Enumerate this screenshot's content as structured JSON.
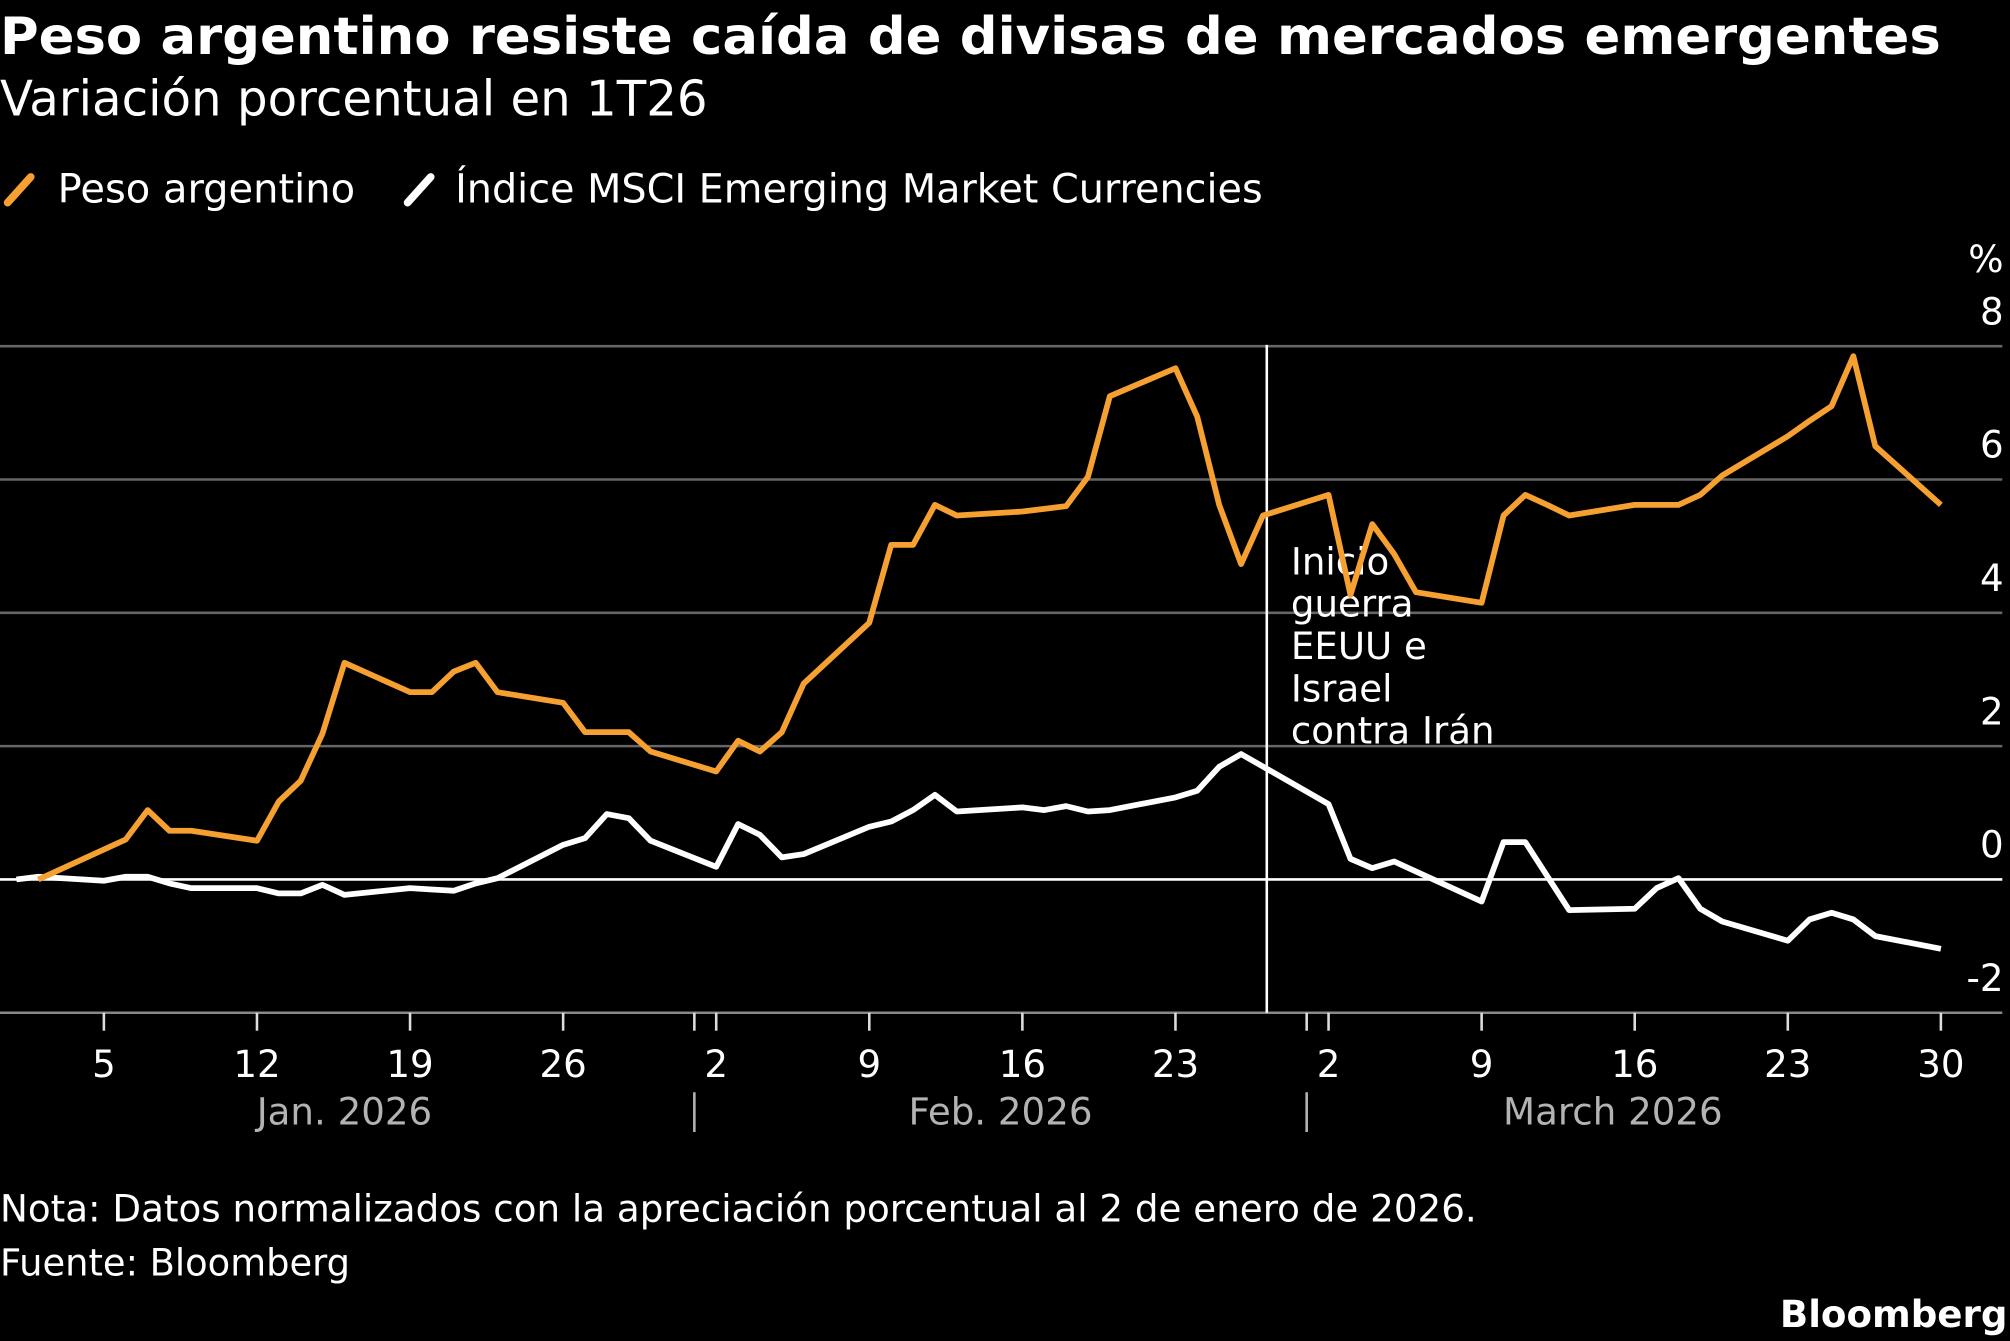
{
  "chart_data": {
    "type": "line",
    "title": "Peso argentino resiste caída de divisas de mercados emergentes",
    "subtitle": "Variación porcentual en 1T26",
    "ylabel": "%",
    "ylim": [
      -2,
      8
    ],
    "yticks": [
      "8",
      "6",
      "4",
      "2",
      "0",
      "-2"
    ],
    "yticks_values": [
      8,
      6,
      4,
      2,
      0,
      -2
    ],
    "xlim": [
      "2026-01-01",
      "2026-03-31"
    ],
    "xticks": [
      {
        "date": "2026-01-05",
        "label": "5"
      },
      {
        "date": "2026-01-12",
        "label": "12"
      },
      {
        "date": "2026-01-19",
        "label": "19"
      },
      {
        "date": "2026-01-26",
        "label": "26"
      },
      {
        "date": "2026-02-02",
        "label": "2"
      },
      {
        "date": "2026-02-09",
        "label": "9"
      },
      {
        "date": "2026-02-16",
        "label": "16"
      },
      {
        "date": "2026-02-23",
        "label": "23"
      },
      {
        "date": "2026-03-02",
        "label": "2"
      },
      {
        "date": "2026-03-09",
        "label": "9"
      },
      {
        "date": "2026-03-16",
        "label": "16"
      },
      {
        "date": "2026-03-23",
        "label": "23"
      },
      {
        "date": "2026-03-30",
        "label": "30"
      }
    ],
    "months": [
      {
        "label": "Jan. 2026",
        "center": "2026-01-16",
        "start": "2026-01-01"
      },
      {
        "label": "Feb. 2026",
        "center": "2026-02-15",
        "start": "2026-02-01"
      },
      {
        "label": "March 2026",
        "center": "2026-03-15",
        "start": "2026-03-01"
      }
    ],
    "grid": true,
    "legend_placement": "top-left",
    "series": [
      {
        "name": "Peso argentino",
        "color": "#f5a030",
        "points": [
          [
            "2026-01-02",
            0
          ],
          [
            "2026-01-06",
            0.6
          ],
          [
            "2026-01-07",
            1.04
          ],
          [
            "2026-01-08",
            0.73
          ],
          [
            "2026-01-09",
            0.73
          ],
          [
            "2026-01-12",
            0.58
          ],
          [
            "2026-01-13",
            1.17
          ],
          [
            "2026-01-14",
            1.48
          ],
          [
            "2026-01-15",
            2.19
          ],
          [
            "2026-01-16",
            3.25
          ],
          [
            "2026-01-19",
            2.81
          ],
          [
            "2026-01-20",
            2.81
          ],
          [
            "2026-01-21",
            3.12
          ],
          [
            "2026-01-22",
            3.25
          ],
          [
            "2026-01-23",
            2.81
          ],
          [
            "2026-01-26",
            2.65
          ],
          [
            "2026-01-27",
            2.21
          ],
          [
            "2026-01-28",
            2.21
          ],
          [
            "2026-01-29",
            2.21
          ],
          [
            "2026-01-30",
            1.92
          ],
          [
            "2026-02-02",
            1.62
          ],
          [
            "2026-02-03",
            2.08
          ],
          [
            "2026-02-04",
            1.92
          ],
          [
            "2026-02-05",
            2.21
          ],
          [
            "2026-02-06",
            2.94
          ],
          [
            "2026-02-09",
            3.85
          ],
          [
            "2026-02-10",
            5.02
          ],
          [
            "2026-02-11",
            5.02
          ],
          [
            "2026-02-12",
            5.62
          ],
          [
            "2026-02-13",
            5.46
          ],
          [
            "2026-02-16",
            5.52
          ],
          [
            "2026-02-17",
            5.56
          ],
          [
            "2026-02-18",
            5.6
          ],
          [
            "2026-02-19",
            6.04
          ],
          [
            "2026-02-20",
            7.25
          ],
          [
            "2026-02-23",
            7.67
          ],
          [
            "2026-02-24",
            6.94
          ],
          [
            "2026-02-25",
            5.62
          ],
          [
            "2026-02-26",
            4.73
          ],
          [
            "2026-02-27",
            5.46
          ],
          [
            "2026-03-02",
            5.77
          ],
          [
            "2026-03-03",
            4.27
          ],
          [
            "2026-03-04",
            5.33
          ],
          [
            "2026-03-05",
            4.88
          ],
          [
            "2026-03-06",
            4.31
          ],
          [
            "2026-03-09",
            4.15
          ],
          [
            "2026-03-10",
            5.46
          ],
          [
            "2026-03-11",
            5.77
          ],
          [
            "2026-03-12",
            5.62
          ],
          [
            "2026-03-13",
            5.46
          ],
          [
            "2026-03-16",
            5.62
          ],
          [
            "2026-03-17",
            5.62
          ],
          [
            "2026-03-18",
            5.62
          ],
          [
            "2026-03-19",
            5.77
          ],
          [
            "2026-03-20",
            6.06
          ],
          [
            "2026-03-23",
            6.65
          ],
          [
            "2026-03-24",
            6.88
          ],
          [
            "2026-03-25",
            7.1
          ],
          [
            "2026-03-26",
            7.85
          ],
          [
            "2026-03-27",
            6.5
          ],
          [
            "2026-03-30",
            5.62
          ]
        ]
      },
      {
        "name": "Índice MSCI Emerging Market Currencies",
        "color": "#ffffff",
        "points": [
          [
            "2026-01-01",
            0
          ],
          [
            "2026-01-02",
            0.04
          ],
          [
            "2026-01-05",
            -0.02
          ],
          [
            "2026-01-06",
            0.04
          ],
          [
            "2026-01-07",
            0.04
          ],
          [
            "2026-01-08",
            -0.06
          ],
          [
            "2026-01-09",
            -0.13
          ],
          [
            "2026-01-12",
            -0.13
          ],
          [
            "2026-01-13",
            -0.21
          ],
          [
            "2026-01-14",
            -0.21
          ],
          [
            "2026-01-15",
            -0.08
          ],
          [
            "2026-01-16",
            -0.23
          ],
          [
            "2026-01-19",
            -0.13
          ],
          [
            "2026-01-20",
            -0.15
          ],
          [
            "2026-01-21",
            -0.17
          ],
          [
            "2026-01-22",
            -0.06
          ],
          [
            "2026-01-23",
            0.02
          ],
          [
            "2026-01-26",
            0.52
          ],
          [
            "2026-01-27",
            0.62
          ],
          [
            "2026-01-28",
            0.98
          ],
          [
            "2026-01-29",
            0.92
          ],
          [
            "2026-01-30",
            0.58
          ],
          [
            "2026-02-02",
            0.19
          ],
          [
            "2026-02-03",
            0.83
          ],
          [
            "2026-02-04",
            0.67
          ],
          [
            "2026-02-05",
            0.33
          ],
          [
            "2026-02-06",
            0.38
          ],
          [
            "2026-02-09",
            0.79
          ],
          [
            "2026-02-10",
            0.87
          ],
          [
            "2026-02-11",
            1.04
          ],
          [
            "2026-02-12",
            1.27
          ],
          [
            "2026-02-13",
            1.02
          ],
          [
            "2026-02-16",
            1.08
          ],
          [
            "2026-02-17",
            1.04
          ],
          [
            "2026-02-18",
            1.1
          ],
          [
            "2026-02-19",
            1.02
          ],
          [
            "2026-02-20",
            1.04
          ],
          [
            "2026-02-23",
            1.23
          ],
          [
            "2026-02-24",
            1.33
          ],
          [
            "2026-02-25",
            1.69
          ],
          [
            "2026-02-26",
            1.88
          ],
          [
            "2026-03-02",
            1.13
          ],
          [
            "2026-03-03",
            0.31
          ],
          [
            "2026-03-04",
            0.17
          ],
          [
            "2026-03-05",
            0.27
          ],
          [
            "2026-03-06",
            0.12
          ],
          [
            "2026-03-09",
            -0.33
          ],
          [
            "2026-03-10",
            0.56
          ],
          [
            "2026-03-11",
            0.56
          ],
          [
            "2026-03-13",
            -0.46
          ],
          [
            "2026-03-16",
            -0.44
          ],
          [
            "2026-03-17",
            -0.13
          ],
          [
            "2026-03-18",
            0.02
          ],
          [
            "2026-03-19",
            -0.44
          ],
          [
            "2026-03-20",
            -0.63
          ],
          [
            "2026-03-23",
            -0.92
          ],
          [
            "2026-03-24",
            -0.6
          ],
          [
            "2026-03-25",
            -0.5
          ],
          [
            "2026-03-26",
            -0.6
          ],
          [
            "2026-03-27",
            -0.85
          ],
          [
            "2026-03-30",
            -1.04
          ]
        ]
      }
    ],
    "annotations": [
      {
        "date": "2026-02-27",
        "lines": [
          "Inicio",
          "guerra",
          "EEUU e",
          "Israel",
          "contra Irán"
        ]
      }
    ]
  },
  "footer": {
    "note": "Nota: Datos normalizados con la apreciación porcentual al 2 de enero de 2026.",
    "source": "Fuente: Bloomberg",
    "brand": "Bloomberg"
  },
  "colors": {
    "background": "#000000",
    "grid": "#666666",
    "month_label": "#b3b3b3"
  }
}
